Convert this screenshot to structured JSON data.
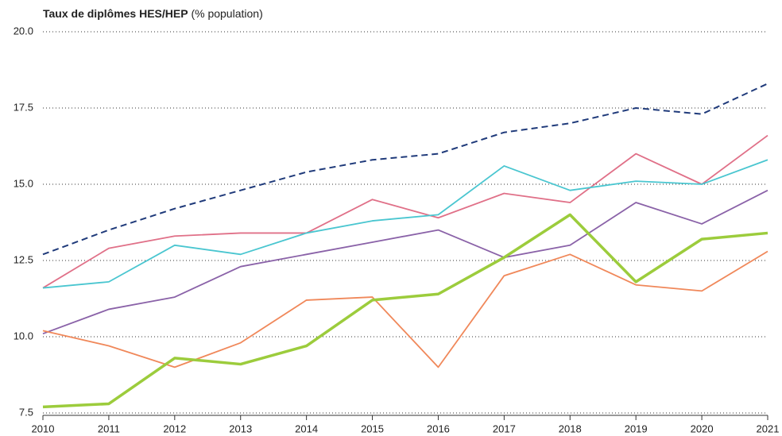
{
  "chart_data": {
    "type": "line",
    "title": "Taux de diplômes HES/HEP",
    "subtitle": "(% population)",
    "categories": [
      "2010",
      "2011",
      "2012",
      "2013",
      "2014",
      "2015",
      "2016",
      "2017",
      "2018",
      "2019",
      "2020",
      "2021"
    ],
    "series": [
      {
        "color": "#1f3a7a",
        "line_style": "dashed",
        "line_width": 2,
        "values": [
          12.7,
          13.5,
          14.2,
          14.8,
          15.4,
          15.8,
          16.0,
          16.7,
          17.0,
          17.5,
          17.3,
          18.3
        ]
      },
      {
        "color": "#e07088",
        "line_style": "solid",
        "line_width": 1.8,
        "values": [
          11.6,
          12.9,
          13.3,
          13.4,
          13.4,
          14.5,
          13.9,
          14.7,
          14.4,
          16.0,
          15.0,
          16.6
        ]
      },
      {
        "color": "#4ac6d0",
        "line_style": "solid",
        "line_width": 1.8,
        "values": [
          11.6,
          11.8,
          13.0,
          12.7,
          13.4,
          13.8,
          14.0,
          15.6,
          14.8,
          15.1,
          15.0,
          15.8
        ]
      },
      {
        "color": "#8a62a8",
        "line_style": "solid",
        "line_width": 1.8,
        "values": [
          10.1,
          10.9,
          11.3,
          12.3,
          12.7,
          13.1,
          13.5,
          12.6,
          13.0,
          14.4,
          13.7,
          14.8
        ]
      },
      {
        "color": "#f0885a",
        "line_style": "solid",
        "line_width": 1.8,
        "values": [
          10.2,
          9.7,
          9.0,
          9.8,
          11.2,
          11.3,
          9.0,
          12.0,
          12.7,
          11.7,
          11.5,
          12.8
        ]
      },
      {
        "color": "#9ccc3c",
        "line_style": "solid",
        "line_width": 3.5,
        "values": [
          7.7,
          7.8,
          9.3,
          9.1,
          9.7,
          11.2,
          11.4,
          12.6,
          14.0,
          11.8,
          13.2,
          13.4
        ]
      }
    ],
    "ylim": [
      7.5,
      20
    ],
    "yticks": [
      7.5,
      {
        "value": 10,
        "label": "10.0"
      },
      12.5,
      {
        "value": 15,
        "label": "15.0"
      },
      17.5,
      {
        "value": 20,
        "label": "20.0"
      }
    ],
    "grid": true
  }
}
